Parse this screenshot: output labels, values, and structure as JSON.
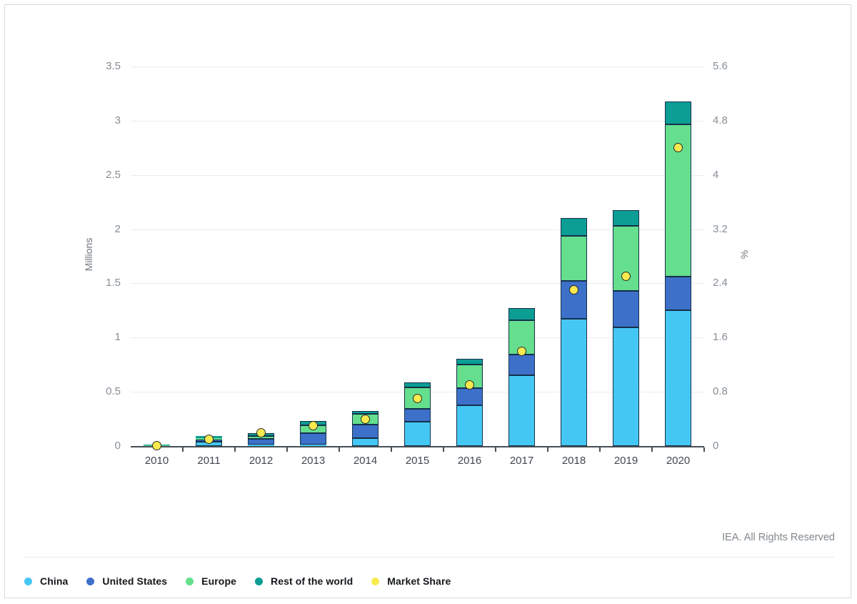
{
  "footer": {
    "attribution": "IEA. All Rights Reserved"
  },
  "chart_data": {
    "type": "bar",
    "subtype": "stacked-bars-with-scatter-overlay",
    "title": "",
    "categories": [
      "2010",
      "2011",
      "2012",
      "2013",
      "2014",
      "2015",
      "2016",
      "2017",
      "2018",
      "2019",
      "2020"
    ],
    "left_axis": {
      "label": "Millions",
      "max": 3.5,
      "ticks": [
        "0",
        "0.5",
        "1",
        "1.5",
        "2",
        "2.5",
        "3",
        "3.5"
      ]
    },
    "right_axis": {
      "label": "%",
      "max": 5.6,
      "ticks": [
        "0",
        "0.8",
        "1.6",
        "2.4",
        "3.2",
        "4",
        "4.8",
        "5.6"
      ]
    },
    "series": [
      {
        "name": "China",
        "color": "#45C7F3",
        "values": [
          0.005,
          0.04,
          0.012,
          0.015,
          0.07,
          0.225,
          0.375,
          0.65,
          1.175,
          1.095,
          1.25
        ]
      },
      {
        "name": "United States",
        "color": "#3D70C9",
        "values": [
          0.002,
          0.022,
          0.055,
          0.105,
          0.125,
          0.115,
          0.16,
          0.195,
          0.35,
          0.335,
          0.315
        ]
      },
      {
        "name": "Europe",
        "color": "#65DF8D",
        "values": [
          0.002,
          0.012,
          0.028,
          0.068,
          0.1,
          0.2,
          0.215,
          0.315,
          0.415,
          0.6,
          1.4
        ]
      },
      {
        "name": "Rest of the world",
        "color": "#0C9D94",
        "values": [
          0.003,
          0.016,
          0.025,
          0.04,
          0.03,
          0.045,
          0.055,
          0.115,
          0.16,
          0.145,
          0.21
        ]
      }
    ],
    "scatter": {
      "name": "Market Share",
      "axis": "right",
      "color": "#F8EA4E",
      "stroke": "#2B2B2B",
      "values": [
        0.01,
        0.1,
        0.2,
        0.3,
        0.4,
        0.7,
        0.9,
        1.4,
        2.3,
        2.5,
        4.4
      ]
    },
    "grid": true,
    "legend_position": "bottom",
    "styles": {
      "segment_outline": "#14304A",
      "axis_line": "#474D54",
      "gridline": "#ECECEC",
      "tick_label_color": "#878E95",
      "category_label_color": "#40474E"
    }
  }
}
